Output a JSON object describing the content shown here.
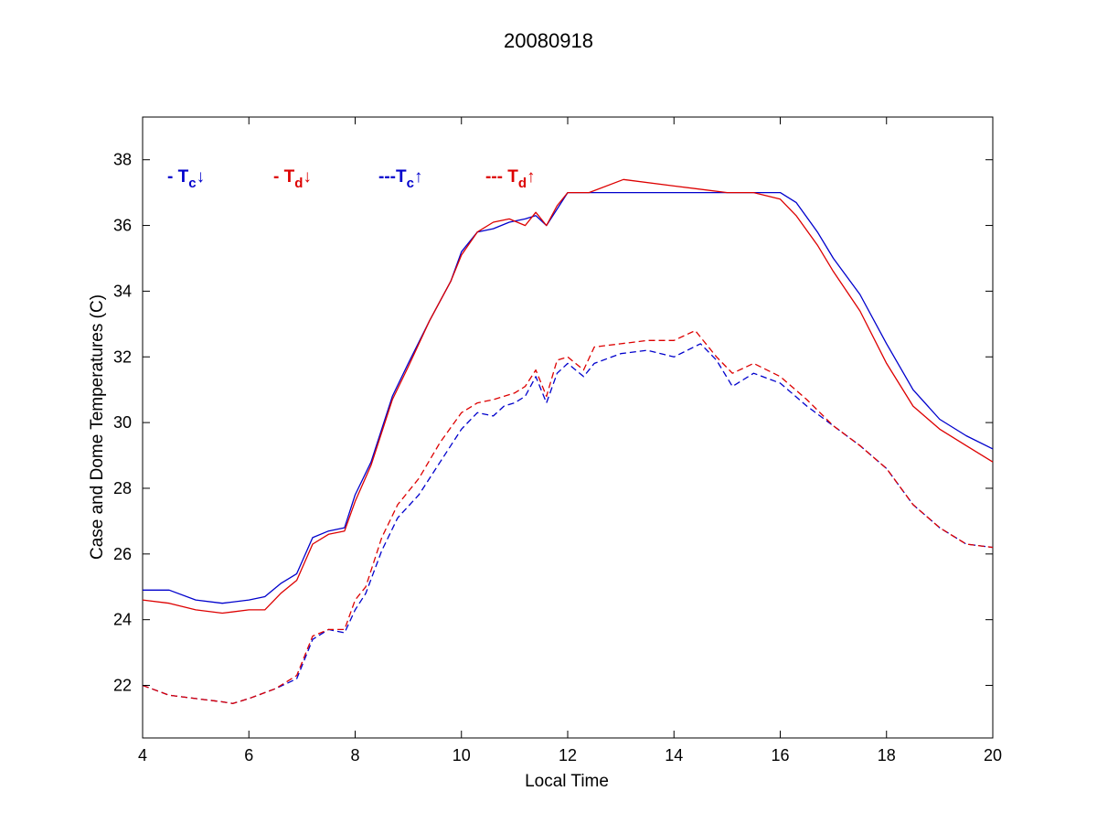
{
  "chart_data": {
    "type": "line",
    "title": "20080918",
    "xlabel": "Local Time",
    "ylabel": "Case and Dome Temperatures (C)",
    "xlim": [
      4,
      20
    ],
    "ylim": [
      20.4,
      39.3
    ],
    "xticks": [
      4,
      6,
      8,
      10,
      12,
      14,
      16,
      18,
      20
    ],
    "yticks": [
      22,
      24,
      26,
      28,
      30,
      32,
      34,
      36,
      38
    ],
    "grid": false,
    "legend_placement": "top-left inside plot",
    "series": [
      {
        "key": "tc_down",
        "legend": {
          "prefix": "- T",
          "sub": "c",
          "arrow": "↓"
        },
        "color": "#0000cc",
        "style": "solid",
        "x": [
          4.0,
          4.5,
          5.0,
          5.5,
          6.0,
          6.3,
          6.6,
          6.9,
          7.2,
          7.5,
          7.8,
          8.0,
          8.3,
          8.7,
          9.0,
          9.4,
          9.8,
          10.0,
          10.3,
          10.6,
          10.9,
          11.2,
          11.4,
          11.6,
          11.8,
          12.0,
          12.5,
          13.0,
          14.0,
          15.0,
          15.5,
          16.0,
          16.3,
          16.7,
          17.0,
          17.5,
          18.0,
          18.5,
          19.0,
          19.5,
          20.0
        ],
        "y": [
          24.9,
          24.9,
          24.6,
          24.5,
          24.6,
          24.7,
          25.1,
          25.4,
          26.5,
          26.7,
          26.8,
          27.8,
          28.8,
          30.8,
          31.8,
          33.1,
          34.3,
          35.2,
          35.8,
          35.9,
          36.1,
          36.2,
          36.3,
          36.0,
          36.5,
          37.0,
          37.0,
          37.0,
          37.0,
          37.0,
          37.0,
          37.0,
          36.7,
          35.8,
          35.0,
          33.9,
          32.4,
          31.0,
          30.1,
          29.6,
          29.2
        ]
      },
      {
        "key": "td_down",
        "legend": {
          "prefix": "- T",
          "sub": "d",
          "arrow": "↓"
        },
        "color": "#dd0000",
        "style": "solid",
        "x": [
          4.0,
          4.5,
          5.0,
          5.5,
          6.0,
          6.3,
          6.6,
          6.9,
          7.2,
          7.5,
          7.8,
          8.0,
          8.3,
          8.7,
          9.0,
          9.4,
          9.8,
          10.0,
          10.3,
          10.6,
          10.9,
          11.2,
          11.4,
          11.6,
          11.8,
          12.0,
          12.4,
          13.05,
          14.0,
          15.0,
          15.5,
          16.0,
          16.3,
          16.7,
          17.0,
          17.5,
          18.0,
          18.5,
          19.0,
          19.5,
          20.0
        ],
        "y": [
          24.6,
          24.5,
          24.3,
          24.2,
          24.3,
          24.3,
          24.8,
          25.2,
          26.3,
          26.6,
          26.7,
          27.6,
          28.7,
          30.7,
          31.7,
          33.1,
          34.3,
          35.1,
          35.8,
          36.1,
          36.2,
          36.0,
          36.4,
          36.0,
          36.6,
          37.0,
          37.0,
          37.4,
          37.2,
          37.0,
          37.0,
          36.8,
          36.3,
          35.4,
          34.6,
          33.4,
          31.8,
          30.5,
          29.8,
          29.3,
          28.8
        ]
      },
      {
        "key": "tc_up",
        "legend": {
          "prefix": "---T",
          "sub": "c",
          "arrow": "↑"
        },
        "color": "#0000cc",
        "style": "dashed",
        "x": [
          4.0,
          4.5,
          5.0,
          5.5,
          5.7,
          6.0,
          6.5,
          6.9,
          7.2,
          7.5,
          7.8,
          8.0,
          8.2,
          8.5,
          8.8,
          9.2,
          9.6,
          10.0,
          10.3,
          10.6,
          10.8,
          11.0,
          11.2,
          11.4,
          11.6,
          11.8,
          12.0,
          12.3,
          12.5,
          13.0,
          13.5,
          14.0,
          14.5,
          14.8,
          15.1,
          15.5,
          16.0,
          16.5,
          17.0,
          17.5,
          18.0,
          18.5,
          19.0,
          19.5,
          20.0
        ],
        "y": [
          22.0,
          21.7,
          21.6,
          21.5,
          21.45,
          21.6,
          21.9,
          22.2,
          23.4,
          23.7,
          23.6,
          24.3,
          24.8,
          26.1,
          27.1,
          27.8,
          28.8,
          29.8,
          30.3,
          30.2,
          30.5,
          30.6,
          30.8,
          31.4,
          30.6,
          31.5,
          31.8,
          31.4,
          31.8,
          32.1,
          32.2,
          32.0,
          32.4,
          31.9,
          31.1,
          31.5,
          31.2,
          30.5,
          29.9,
          29.3,
          28.6,
          27.5,
          26.8,
          26.3,
          26.2
        ]
      },
      {
        "key": "td_up",
        "legend": {
          "prefix": "--- T",
          "sub": "d",
          "arrow": "↑"
        },
        "color": "#dd0000",
        "style": "dashed",
        "x": [
          4.0,
          4.5,
          5.0,
          5.5,
          5.7,
          6.0,
          6.5,
          6.9,
          7.2,
          7.5,
          7.8,
          8.0,
          8.2,
          8.5,
          8.8,
          9.2,
          9.6,
          10.0,
          10.3,
          10.6,
          10.8,
          11.0,
          11.2,
          11.4,
          11.6,
          11.8,
          12.0,
          12.3,
          12.5,
          13.0,
          13.5,
          14.0,
          14.4,
          14.8,
          15.1,
          15.5,
          16.0,
          16.5,
          17.0,
          17.5,
          18.0,
          18.5,
          19.0,
          19.5,
          20.0
        ],
        "y": [
          22.0,
          21.7,
          21.6,
          21.5,
          21.45,
          21.6,
          21.9,
          22.3,
          23.5,
          23.7,
          23.7,
          24.6,
          25.0,
          26.5,
          27.5,
          28.3,
          29.4,
          30.3,
          30.6,
          30.7,
          30.8,
          30.9,
          31.1,
          31.6,
          30.8,
          31.9,
          32.0,
          31.6,
          32.3,
          32.4,
          32.5,
          32.5,
          32.8,
          32.0,
          31.5,
          31.8,
          31.4,
          30.7,
          29.9,
          29.3,
          28.6,
          27.5,
          26.8,
          26.3,
          26.2
        ]
      }
    ]
  }
}
